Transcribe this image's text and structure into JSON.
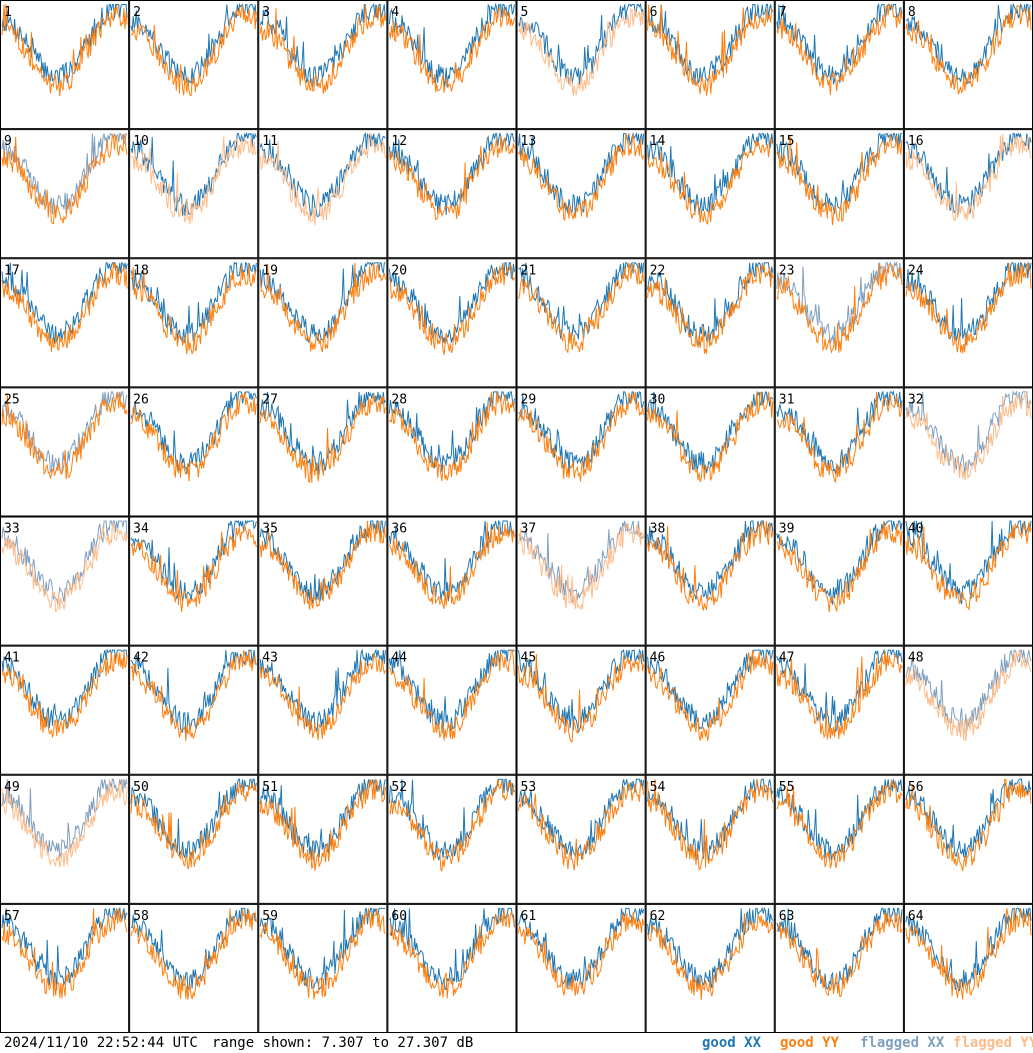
{
  "chart_data": {
    "type": "line",
    "panel_labels": [
      "1",
      "2",
      "3",
      "4",
      "5",
      "6",
      "7",
      "8",
      "9",
      "10",
      "11",
      "12",
      "13",
      "14",
      "15",
      "16",
      "17",
      "18",
      "19",
      "20",
      "21",
      "22",
      "23",
      "24",
      "25",
      "26",
      "27",
      "28",
      "29",
      "30",
      "31",
      "32",
      "33",
      "34",
      "35",
      "36",
      "37",
      "38",
      "39",
      "40",
      "41",
      "42",
      "43",
      "44",
      "45",
      "46",
      "47",
      "48",
      "49",
      "50",
      "51",
      "52",
      "53",
      "54",
      "55",
      "56",
      "57",
      "58",
      "59",
      "60",
      "61",
      "62",
      "63",
      "64"
    ],
    "series": [
      {
        "name": "good XX",
        "color": "#1f77b4"
      },
      {
        "name": "good YY",
        "color": "#ff7f0e"
      },
      {
        "name": "flagged XX",
        "color": "#7f9fbf"
      },
      {
        "name": "flagged YY",
        "color": "#ffbb88"
      }
    ],
    "ylim": [
      7.307,
      27.307
    ],
    "panel_series": [
      [
        "good XX",
        "good YY"
      ],
      [
        "good XX",
        "good YY"
      ],
      [
        "good XX",
        "good YY"
      ],
      [
        "good XX",
        "good YY"
      ],
      [
        "good XX",
        "flagged YY"
      ],
      [
        "good XX",
        "good YY"
      ],
      [
        "good XX",
        "good YY"
      ],
      [
        "good XX",
        "good YY"
      ],
      [
        "flagged XX",
        "good YY"
      ],
      [
        "good XX",
        "flagged YY"
      ],
      [
        "good XX",
        "flagged YY"
      ],
      [
        "good XX",
        "good YY"
      ],
      [
        "good XX",
        "good YY"
      ],
      [
        "good XX",
        "good YY"
      ],
      [
        "good XX",
        "good YY"
      ],
      [
        "good XX",
        "flagged YY"
      ],
      [
        "good XX",
        "good YY"
      ],
      [
        "good XX",
        "good YY"
      ],
      [
        "good XX",
        "good YY"
      ],
      [
        "good XX",
        "good YY"
      ],
      [
        "good XX",
        "good YY"
      ],
      [
        "good XX",
        "good YY"
      ],
      [
        "flagged XX",
        "good YY"
      ],
      [
        "good XX",
        "good YY"
      ],
      [
        "flagged XX",
        "good YY"
      ],
      [
        "good XX",
        "good YY"
      ],
      [
        "good XX",
        "good YY"
      ],
      [
        "good XX",
        "good YY"
      ],
      [
        "good XX",
        "good YY"
      ],
      [
        "good XX",
        "good YY"
      ],
      [
        "good XX",
        "good YY"
      ],
      [
        "flagged XX",
        "flagged YY"
      ],
      [
        "flagged XX",
        "flagged YY"
      ],
      [
        "good XX",
        "good YY"
      ],
      [
        "good XX",
        "good YY"
      ],
      [
        "good XX",
        "good YY"
      ],
      [
        "flagged XX",
        "flagged YY"
      ],
      [
        "good XX",
        "good YY"
      ],
      [
        "good XX",
        "good YY"
      ],
      [
        "good XX",
        "good YY"
      ],
      [
        "good XX",
        "good YY"
      ],
      [
        "good XX",
        "good YY"
      ],
      [
        "good XX",
        "good YY"
      ],
      [
        "good XX",
        "good YY"
      ],
      [
        "good XX",
        "good YY"
      ],
      [
        "good XX",
        "good YY"
      ],
      [
        "good XX",
        "good YY"
      ],
      [
        "flagged XX",
        "flagged YY"
      ],
      [
        "flagged XX",
        "flagged YY"
      ],
      [
        "good XX",
        "good YY"
      ],
      [
        "good XX",
        "good YY"
      ],
      [
        "good XX",
        "good YY"
      ],
      [
        "good XX",
        "good YY"
      ],
      [
        "good XX",
        "good YY"
      ],
      [
        "good XX",
        "good YY"
      ],
      [
        "good XX",
        "good YY"
      ],
      [
        "good XX",
        "good YY"
      ],
      [
        "good XX",
        "good YY"
      ],
      [
        "good XX",
        "good YY"
      ],
      [
        "good XX",
        "good YY"
      ],
      [
        "good XX",
        "good YY"
      ],
      [
        "good XX",
        "good YY"
      ],
      [
        "good XX",
        "good YY"
      ],
      [
        "good XX",
        "good YY"
      ]
    ],
    "grid": false
  },
  "footer": {
    "timestamp": "2024/11/10 22:52:44 UTC",
    "range_text": "range shown: 7.307 to 27.307 dB",
    "legend": [
      "good XX",
      "good YY",
      "flagged XX",
      "flagged YY"
    ]
  }
}
